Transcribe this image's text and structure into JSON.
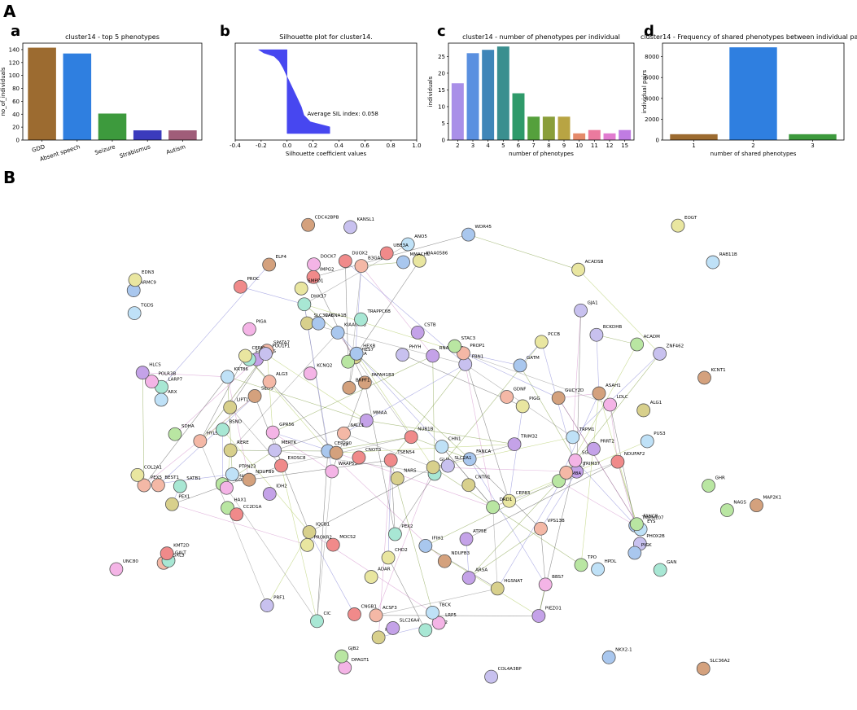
{
  "figure": {
    "panel_A": "A",
    "panel_B": "B",
    "sub_a": "a",
    "sub_b": "b",
    "sub_c": "c",
    "sub_d": "d"
  },
  "chart_data": [
    {
      "type": "bar",
      "title": "cluster14 - top 5 phenotypes",
      "ylabel": "no_of_individuals",
      "xlabel": "",
      "categories": [
        "GDD",
        "Absent speech",
        "Seizure",
        "Strabismus",
        "Autism"
      ],
      "values": [
        143,
        134,
        41,
        15,
        15
      ],
      "colors": [
        "#9c6b30",
        "#2f7fe0",
        "#3d9a3d",
        "#3b3bbd",
        "#a05d79"
      ],
      "ylim": [
        0,
        150
      ],
      "yticks": [
        0,
        20,
        40,
        60,
        80,
        100,
        120,
        140
      ]
    },
    {
      "type": "area",
      "title": "Silhouette plot for cluster14.",
      "xlabel": "Silhouette coefficient values",
      "ylabel": "",
      "xlim": [
        -0.4,
        1.0
      ],
      "xticks": [
        -0.4,
        -0.2,
        0.0,
        0.2,
        0.4,
        0.6,
        0.8,
        1.0
      ],
      "annotation": "Average SIL index: 0.058",
      "color": "#4747f0",
      "profile": [
        [
          0.0,
          -0.22
        ],
        [
          0.04,
          -0.18
        ],
        [
          0.08,
          -0.1
        ],
        [
          0.14,
          -0.06
        ],
        [
          0.22,
          -0.03
        ],
        [
          0.32,
          0.0
        ],
        [
          0.45,
          0.04
        ],
        [
          0.58,
          0.08
        ],
        [
          0.68,
          0.11
        ],
        [
          0.78,
          0.13
        ],
        [
          0.86,
          0.18
        ],
        [
          0.92,
          0.33
        ],
        [
          1.0,
          0.33
        ]
      ]
    },
    {
      "type": "bar",
      "title": "cluster14 - number of phenotypes per individual",
      "ylabel": "individuals",
      "xlabel": "number of phenotypes",
      "categories": [
        "2",
        "3",
        "4",
        "5",
        "6",
        "7",
        "8",
        "9",
        "10",
        "11",
        "12",
        "15"
      ],
      "values": [
        17,
        26,
        27,
        28,
        14,
        7,
        7,
        7,
        2,
        3,
        2,
        3
      ],
      "colors": [
        "#a98fe8",
        "#5a90e0",
        "#3f86b8",
        "#3a8f8f",
        "#2f9a6a",
        "#55a03c",
        "#8a9e3a",
        "#b8a443",
        "#e58a6a",
        "#eb7a9e",
        "#e17bd0",
        "#c07ce2"
      ],
      "ylim": [
        0,
        29
      ],
      "yticks": [
        0,
        5,
        10,
        15,
        20,
        25
      ]
    },
    {
      "type": "bar",
      "title": "cluster14 - Frequency of shared phenotypes between individual pairs",
      "ylabel": "individual pairs",
      "xlabel": "number of shared phenotypes",
      "categories": [
        "1",
        "2",
        "3"
      ],
      "values": [
        560,
        8900,
        560
      ],
      "colors": [
        "#9c6b30",
        "#2f7fe0",
        "#3d9a3d"
      ],
      "ylim": [
        0,
        9300
      ],
      "yticks": [
        0,
        2000,
        4000,
        6000,
        8000
      ]
    }
  ],
  "network": {
    "labels": [
      "HYLS1",
      "CEP83",
      "C5orf42",
      "TMEM107",
      "MKKS",
      "CNGB1",
      "PAFAH1B3",
      "GPR56",
      "HES7",
      "KRT86",
      "KRT81",
      "ZNF462",
      "VPS13B",
      "PIGG",
      "HAX1",
      "KIAA0753",
      "PIEZO1",
      "EXOSC8",
      "SEDS",
      "BBS7",
      "IQCB1",
      "EYS",
      "RDH12",
      "MERTK",
      "SPATA7",
      "KIAA0586",
      "DRD1",
      "CEP290",
      "TRIM37",
      "IMPG2",
      "GUCY2D",
      "ALOXE3",
      "PEX1",
      "PTPN23",
      "PEX2",
      "PHYH",
      "ACSF3",
      "ACADSB",
      "ACADM",
      "MMACHC",
      "MMAA",
      "MOCS2",
      "NDUFB3",
      "DOCK7",
      "KIAA1",
      "TRPM1",
      "FOXE3",
      "PHOX2B",
      "BEST1",
      "CERKL",
      "TPO",
      "GATM",
      "TRIM32",
      "DUOX2",
      "ELP4",
      "LRP5",
      "GLI3",
      "CHN1",
      "LARP7",
      "FBN1",
      "SALL1",
      "ADAR",
      "RBM8A",
      "IFIH1",
      "RNASEH2B",
      "NUB1B",
      "BRPF1",
      "WRAP53",
      "RERE",
      "PUS3",
      "SATB1",
      "PRF1",
      "B3GALTL",
      "CHD2",
      "FANCB",
      "FANCA",
      "ATP5E",
      "NDUFAF2",
      "NDUFB9",
      "POLR3B",
      "LIPT1",
      "HPDL",
      "DHX37",
      "BCKDHB",
      "PEX5",
      "PCCB",
      "SDHA",
      "WDR45",
      "HLCS",
      "PROC",
      "CP",
      "LDLC",
      "SLC39A8",
      "ANO5",
      "BSND",
      "GJA1",
      "GPC3",
      "COL2A1",
      "HEXA",
      "HEXB",
      "ARSA",
      "TSEN54",
      "ASAH1",
      "SGSH",
      "HGSNAT",
      "TBCK",
      "CIC",
      "POU1F1",
      "PROP1",
      "PROKR2",
      "GHR",
      "ARMC9",
      "CSTB",
      "CNOT3",
      "CDC42BPB",
      "UNC80",
      "NARS",
      "RAB11B",
      "TRAPPC6B",
      "KANSL1",
      "ASXL3",
      "EOGT",
      "STAC3",
      "CACNA1B",
      "PRRT2",
      "CC2D1A",
      "SLC36A2",
      "DPAGT1",
      "ALG1",
      "TGDS",
      "GALT",
      "COL4A3BP",
      "ALG3",
      "SMPD1",
      "NAGS",
      "PIGK",
      "IDH2",
      "KMT2D",
      "MAP2K1",
      "KCNQ2",
      "CNTN1",
      "ARX",
      "GAN",
      "SLC2A1",
      "GDNF",
      "EDN3",
      "GJB2",
      "NKX2-1",
      "SLC26A4",
      "UBE3A",
      "KCNT1",
      "PIGA"
    ],
    "colors": [
      "#f4b8a6",
      "#e9e6a0",
      "#b9e6a2",
      "#a9c7ee",
      "#c4a2e8",
      "#f08a8a",
      "#d4a17d",
      "#f4b4e6",
      "#d8d08c",
      "#bfe1f7",
      "#a8e7d4",
      "#c8c1ef"
    ]
  }
}
